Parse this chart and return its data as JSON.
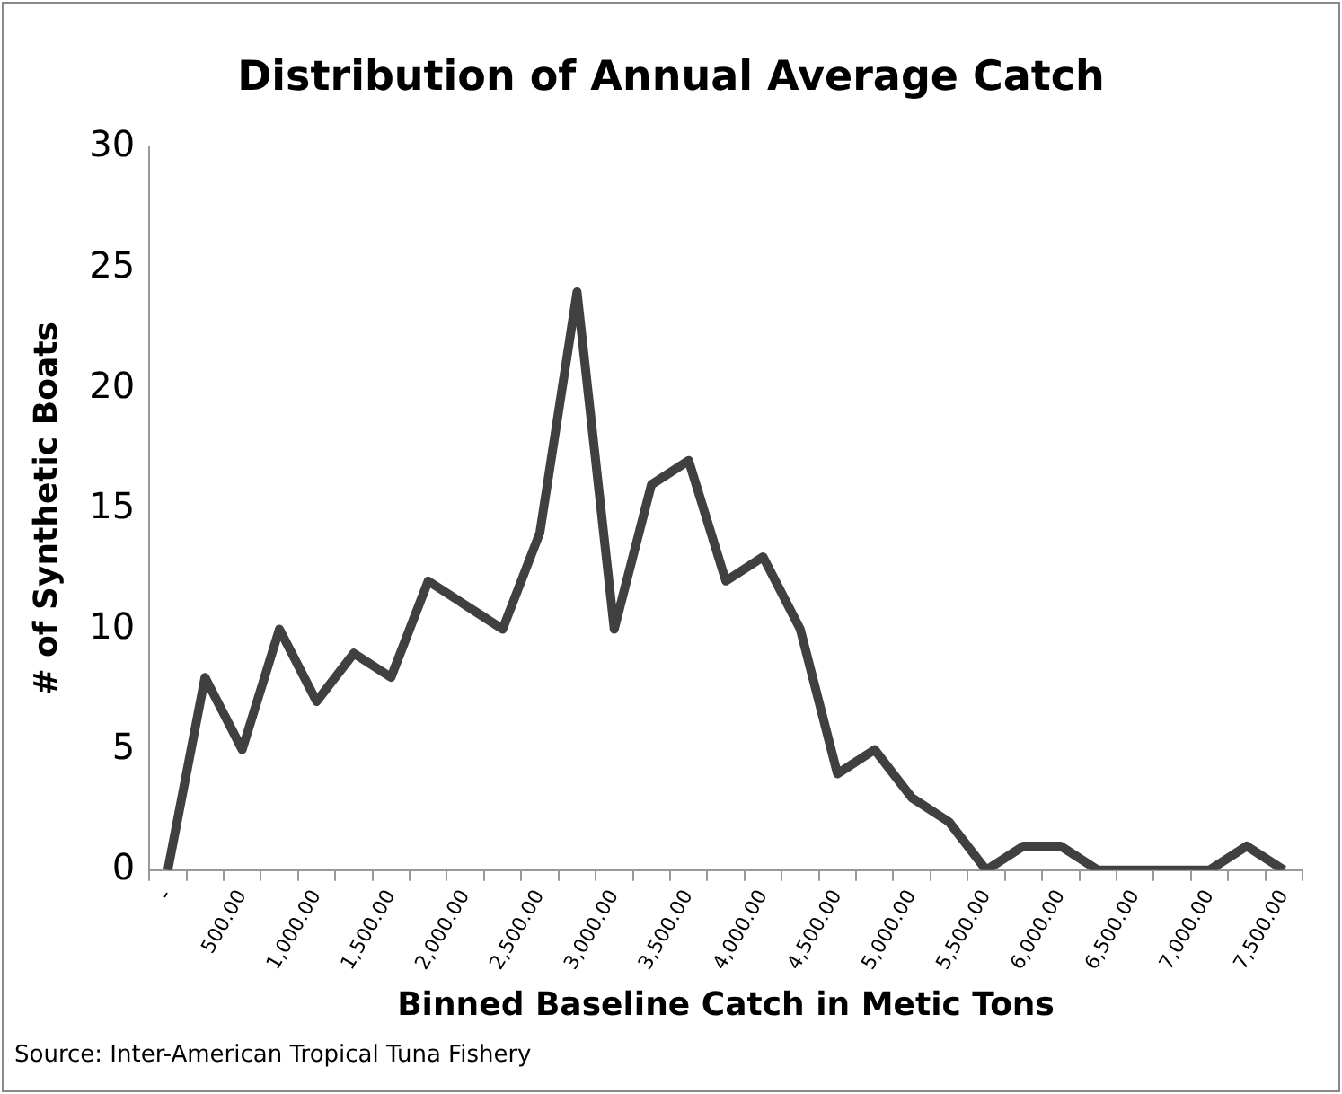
{
  "chart_data": {
    "type": "line",
    "title": "Distribution of Annual Average Catch",
    "xlabel": "Binned Baseline Catch in Metic Tons",
    "ylabel": "# of Synthetic Boats",
    "categories": [
      "-",
      null,
      "500.00",
      null,
      "1,000.00",
      null,
      "1,500.00",
      null,
      "2,000.00",
      null,
      "2,500.00",
      null,
      "3,000.00",
      null,
      "3,500.00",
      null,
      "4,000.00",
      null,
      "4,500.00",
      null,
      "5,000.00",
      null,
      "5,500.00",
      null,
      "6,000.00",
      null,
      "6,500.00",
      null,
      "7,000.00",
      null,
      "7,500.00"
    ],
    "series": [
      {
        "color": "#404040",
        "values": [
          0,
          8,
          5,
          10,
          7,
          9,
          8,
          12,
          11,
          10,
          14,
          24,
          10,
          16,
          17,
          12,
          13,
          10,
          4,
          5,
          3,
          2,
          0,
          1,
          1,
          0,
          0,
          0,
          0,
          1,
          0
        ]
      }
    ],
    "ylim": [
      0,
      30
    ],
    "yticks": [
      0,
      5,
      10,
      15,
      20,
      25,
      30
    ],
    "grid": false,
    "legend": false,
    "marker": "none",
    "line_style": "solid",
    "annotations": [
      "Source: Inter-American Tropical Tuna Fishery"
    ]
  }
}
